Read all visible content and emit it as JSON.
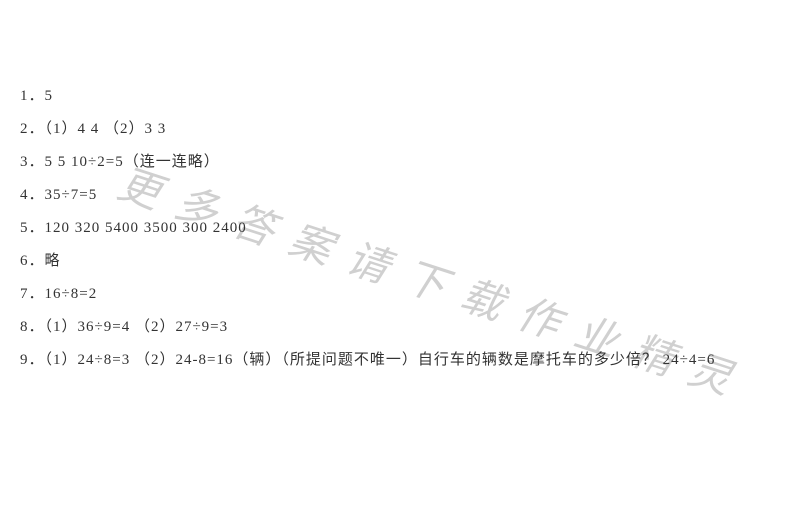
{
  "document": {
    "text_color": "#333333",
    "background_color": "#ffffff",
    "font_size": 15,
    "line_height": 2.2,
    "lines": [
      "1．5",
      "2．（1）4  4   （2）3   3",
      "3．5   5   10÷2=5（连一连略）",
      "4．35÷7=5",
      "5．120   320   5400   3500   300   2400",
      "6．略",
      "7．16÷8=2",
      "8．（1）36÷9=4      （2）27÷9=3",
      "9．（1）24÷8=3      （2）24-8=16（辆）（所提问题不唯一）自行车的辆数是摩托车的多少倍？    24÷4=6"
    ]
  },
  "watermark": {
    "text": "更多答案请下载作业精灵",
    "color": "#d0d0d0",
    "font_size": 42,
    "rotation_deg": 18,
    "letter_spacing": 18
  }
}
